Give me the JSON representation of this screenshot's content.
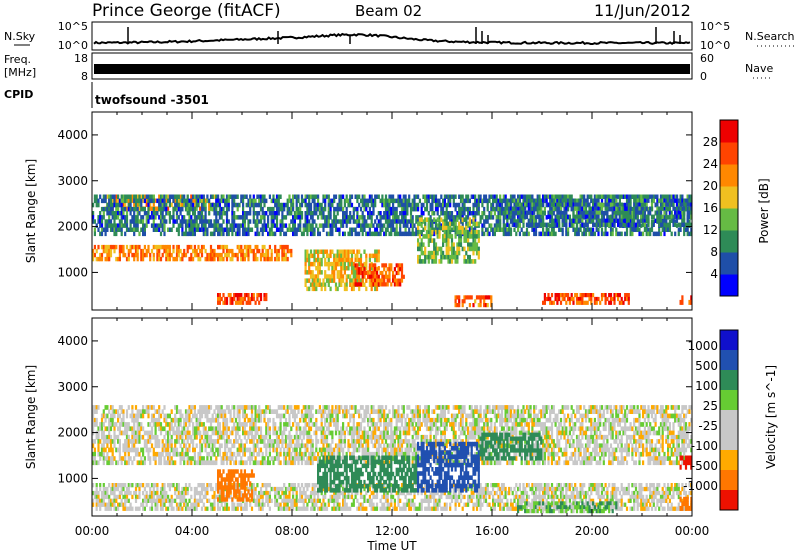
{
  "header": {
    "station": "Prince George (fitACF)",
    "beam": "Beam 02",
    "date": "11/Jun/2012"
  },
  "strip_labels": {
    "nsky": "N.Sky",
    "nsky_top": "10^5",
    "nsky_bottom": "10^0",
    "nsearch": "N.Search",
    "nsearch_top": "10^5",
    "nsearch_bottom": "10^0",
    "freq_label": "Freq.",
    "freq_unit": "[MHz]",
    "freq_top": "18",
    "freq_bottom": "8",
    "nave": "Nave",
    "nave_top": "60",
    "nave_bottom": "0",
    "cpid": "CPID",
    "cpid_value": "twofsound -3501"
  },
  "colors": {
    "power_scale": [
      "#0000ff",
      "#1f4fa8",
      "#2e8b57",
      "#66bb44",
      "#f0c020",
      "#ff8800",
      "#ff4400",
      "#ee0000"
    ],
    "velocity_scale": [
      "#1010cc",
      "#2050b0",
      "#2e8b57",
      "#66cc33",
      "#c8c8c8",
      "#c8c8c8",
      "#ffaa00",
      "#ff7700",
      "#ee1100"
    ],
    "ground_scatter": "#c8c8c8"
  },
  "chart_data": [
    {
      "type": "heatmap",
      "panel": "power",
      "ylabel": "Slant Range [km]",
      "xlabel": "",
      "ylim": [
        180,
        4500
      ],
      "yticks": [
        "1000",
        "2000",
        "3000",
        "4000"
      ],
      "xticks": [
        "00:00",
        "04:00",
        "08:00",
        "12:00",
        "16:00",
        "20:00",
        "00:00"
      ],
      "xlim_hours": [
        0,
        24
      ],
      "colorbar": {
        "label": "Power [dB]",
        "ticks": [
          "4",
          "8",
          "12",
          "16",
          "20",
          "24",
          "28"
        ],
        "range": [
          0,
          32
        ]
      },
      "regions": [
        {
          "t": [
            0.0,
            8.0
          ],
          "r": [
            1250,
            1600
          ],
          "value": 22
        },
        {
          "t": [
            0.5,
            5.0
          ],
          "r": [
            2350,
            2700
          ],
          "value": 20
        },
        {
          "t": [
            0.0,
            24.0
          ],
          "r": [
            1800,
            2700
          ],
          "value": 8
        },
        {
          "t": [
            5.0,
            7.0
          ],
          "r": [
            300,
            550
          ],
          "value": 26
        },
        {
          "t": [
            8.5,
            11.5
          ],
          "r": [
            600,
            1500
          ],
          "value": 18
        },
        {
          "t": [
            10.5,
            12.5
          ],
          "r": [
            700,
            1200
          ],
          "value": 26
        },
        {
          "t": [
            13.0,
            15.5
          ],
          "r": [
            1200,
            2200
          ],
          "value": 14
        },
        {
          "t": [
            14.5,
            16.0
          ],
          "r": [
            250,
            500
          ],
          "value": 24
        },
        {
          "t": [
            18.0,
            21.5
          ],
          "r": [
            300,
            550
          ],
          "value": 26
        },
        {
          "t": [
            16.5,
            24.0
          ],
          "r": [
            2000,
            2700
          ],
          "value": 8
        },
        {
          "t": [
            23.5,
            24.0
          ],
          "r": [
            300,
            500
          ],
          "value": 26
        }
      ]
    },
    {
      "type": "heatmap",
      "panel": "velocity",
      "ylabel": "Slant Range [km]",
      "xlabel": "Time UT",
      "ylim": [
        180,
        4500
      ],
      "yticks": [
        "1000",
        "2000",
        "3000",
        "4000"
      ],
      "xticks": [
        "00:00",
        "04:00",
        "08:00",
        "12:00",
        "16:00",
        "20:00",
        "00:00"
      ],
      "xlim_hours": [
        0,
        24
      ],
      "colorbar": {
        "label": "Velocity [m s^-1]",
        "ticks": [
          "1000",
          "500",
          "100",
          "25",
          "-25",
          "-100",
          "-500",
          "-1000"
        ]
      },
      "regions": [
        {
          "t": [
            0.0,
            24.0
          ],
          "r": [
            1300,
            2600
          ],
          "value": 0
        },
        {
          "t": [
            0.0,
            24.0
          ],
          "r": [
            300,
            900
          ],
          "value": 0
        },
        {
          "t": [
            5.0,
            6.5
          ],
          "r": [
            500,
            1200
          ],
          "value": -300
        },
        {
          "t": [
            9.0,
            13.0
          ],
          "r": [
            700,
            1500
          ],
          "value": 200
        },
        {
          "t": [
            13.0,
            15.5
          ],
          "r": [
            700,
            1800
          ],
          "value": 500
        },
        {
          "t": [
            15.5,
            18.0
          ],
          "r": [
            1400,
            2000
          ],
          "value": 200
        },
        {
          "t": [
            17.0,
            21.0
          ],
          "r": [
            250,
            500
          ],
          "value": 50
        },
        {
          "t": [
            23.5,
            24.0
          ],
          "r": [
            300,
            600
          ],
          "value": -300
        },
        {
          "t": [
            23.5,
            24.0
          ],
          "r": [
            1200,
            1500
          ],
          "value": -700
        }
      ]
    }
  ]
}
